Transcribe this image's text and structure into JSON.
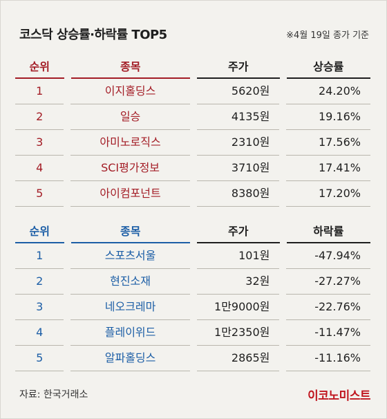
{
  "header": {
    "title": "코스닥 상승률·하락률 TOP5",
    "note": "※4월 19일 종가 기준"
  },
  "gainers": {
    "headers": {
      "rank": "순위",
      "name": "종목",
      "price": "주가",
      "rate": "상승률"
    },
    "rows": [
      {
        "rank": "1",
        "name": "이지홀딩스",
        "price": "5620원",
        "rate": "24.20%"
      },
      {
        "rank": "2",
        "name": "일승",
        "price": "4135원",
        "rate": "19.16%"
      },
      {
        "rank": "3",
        "name": "아미노로직스",
        "price": "2310원",
        "rate": "17.56%"
      },
      {
        "rank": "4",
        "name": "SCI평가정보",
        "price": "3710원",
        "rate": "17.41%"
      },
      {
        "rank": "5",
        "name": "아이컴포넌트",
        "price": "8380원",
        "rate": "17.20%"
      }
    ]
  },
  "losers": {
    "headers": {
      "rank": "순위",
      "name": "종목",
      "price": "주가",
      "rate": "하락률"
    },
    "rows": [
      {
        "rank": "1",
        "name": "스포츠서울",
        "price": "101원",
        "rate": "-47.94%"
      },
      {
        "rank": "2",
        "name": "현진소재",
        "price": "32원",
        "rate": "-27.27%"
      },
      {
        "rank": "3",
        "name": "네오크레마",
        "price": "1만9000원",
        "rate": "-22.76%"
      },
      {
        "rank": "4",
        "name": "플레이위드",
        "price": "1만2350원",
        "rate": "-11.47%"
      },
      {
        "rank": "5",
        "name": "알파홀딩스",
        "price": "2865원",
        "rate": "-11.16%"
      }
    ]
  },
  "footer": {
    "source": "자료: 한국거래소",
    "logo": "이코노미스트"
  },
  "colors": {
    "gain_accent": "#a31c25",
    "loss_accent": "#1c5ea6",
    "logo": "#c0161f",
    "background": "#f3f2ee"
  }
}
